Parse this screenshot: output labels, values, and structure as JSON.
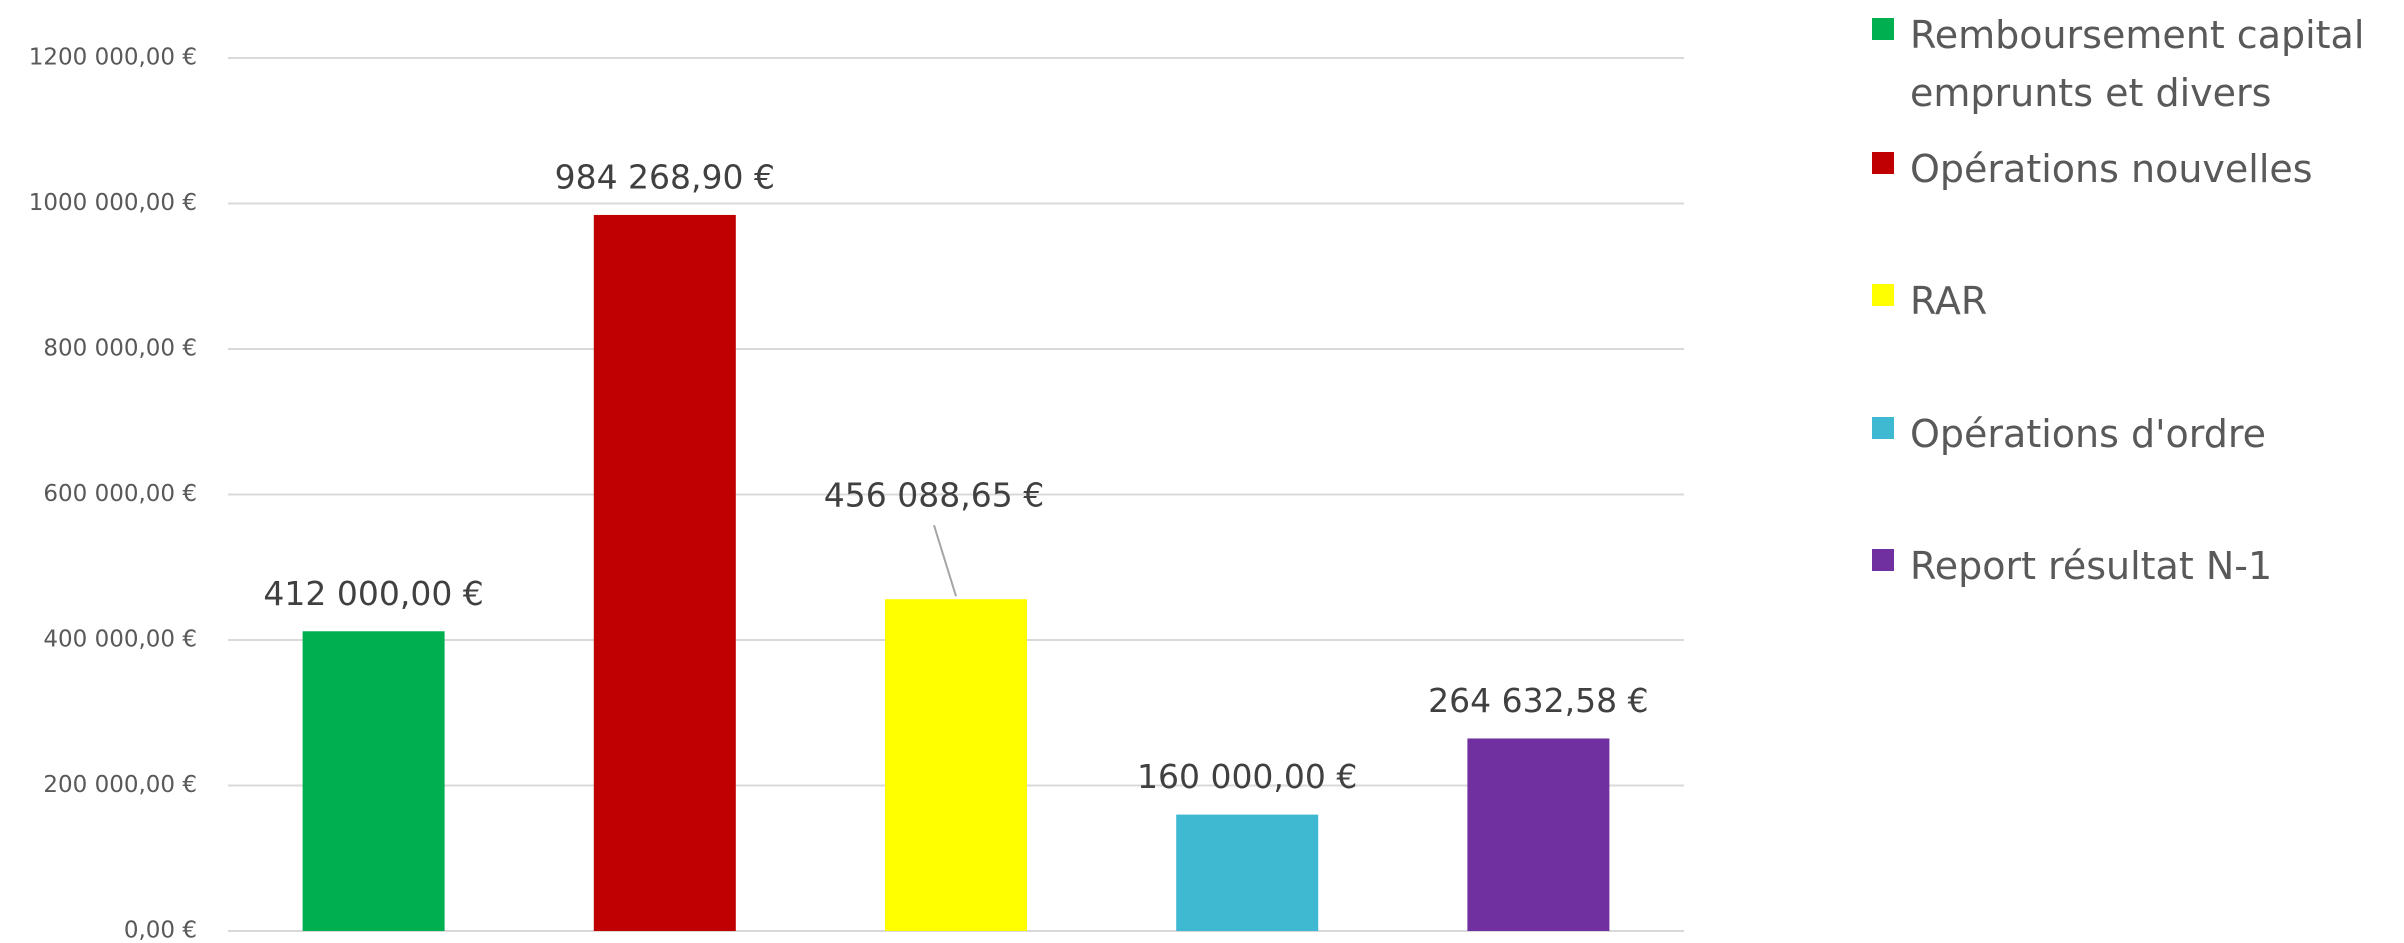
{
  "chart_data": {
    "type": "bar",
    "series": [
      {
        "name": "Remboursement capital emprunts et divers",
        "color": "#00b050",
        "values": [
          412000
        ],
        "value_labels": [
          "412 000,00 €"
        ]
      },
      {
        "name": "Opérations nouvelles",
        "color": "#c00000",
        "values": [
          984268.9
        ],
        "value_labels": [
          "984 268,90 €"
        ]
      },
      {
        "name": "RAR",
        "color": "#ffff00",
        "values": [
          456088.65
        ],
        "value_labels": [
          "456 088,65 €"
        ]
      },
      {
        "name": "Opérations d'ordre",
        "color": "#3fb8d2",
        "values": [
          160000
        ],
        "value_labels": [
          "160 000,00 €"
        ]
      },
      {
        "name": "Report résultat N-1",
        "color": "#7030a0",
        "values": [
          264632.58
        ],
        "value_labels": [
          "264 632,58 €"
        ]
      }
    ],
    "ylim": [
      0,
      1200000
    ],
    "yticks": [
      {
        "value": 0,
        "label": "0,00 €"
      },
      {
        "value": 200000,
        "label": "200 000,00 €"
      },
      {
        "value": 400000,
        "label": "400 000,00 €"
      },
      {
        "value": 600000,
        "label": "600 000,00 €"
      },
      {
        "value": 800000,
        "label": "800 000,00 €"
      },
      {
        "value": 1000000,
        "label": "1000 000,00 €"
      },
      {
        "value": 1200000,
        "label": "1200 000,00 €"
      }
    ],
    "grid": true,
    "legend": "right"
  }
}
